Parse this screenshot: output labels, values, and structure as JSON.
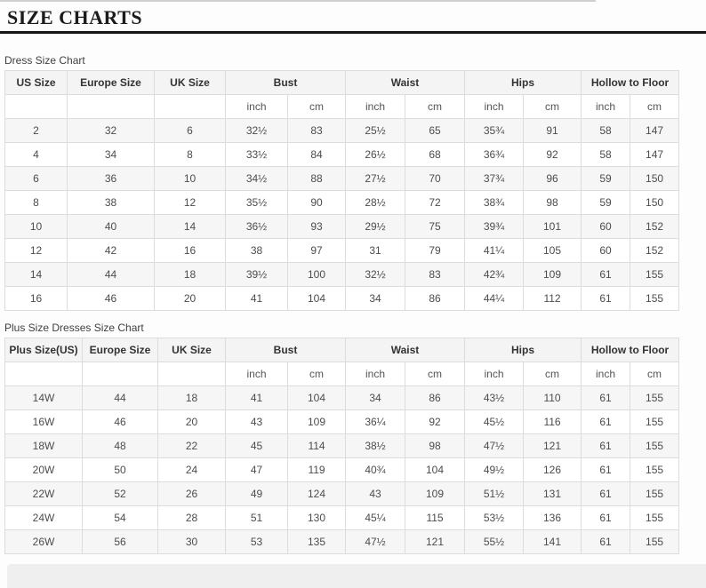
{
  "header": {
    "title": "SIZE CHARTS"
  },
  "tables": [
    {
      "label": "Dress Size Chart",
      "columns": [
        "US Size",
        "Europe Size",
        "UK Size",
        "Bust",
        "Waist",
        "Hips",
        "Hollow to Floor"
      ],
      "subunits": [
        "inch",
        "cm"
      ],
      "rows": [
        [
          "2",
          "32",
          "6",
          "32½",
          "83",
          "25½",
          "65",
          "35¾",
          "91",
          "58",
          "147"
        ],
        [
          "4",
          "34",
          "8",
          "33½",
          "84",
          "26½",
          "68",
          "36¾",
          "92",
          "58",
          "147"
        ],
        [
          "6",
          "36",
          "10",
          "34½",
          "88",
          "27½",
          "70",
          "37¾",
          "96",
          "59",
          "150"
        ],
        [
          "8",
          "38",
          "12",
          "35½",
          "90",
          "28½",
          "72",
          "38¾",
          "98",
          "59",
          "150"
        ],
        [
          "10",
          "40",
          "14",
          "36½",
          "93",
          "29½",
          "75",
          "39¾",
          "101",
          "60",
          "152"
        ],
        [
          "12",
          "42",
          "16",
          "38",
          "97",
          "31",
          "79",
          "41¼",
          "105",
          "60",
          "152"
        ],
        [
          "14",
          "44",
          "18",
          "39½",
          "100",
          "32½",
          "83",
          "42¾",
          "109",
          "61",
          "155"
        ],
        [
          "16",
          "46",
          "20",
          "41",
          "104",
          "34",
          "86",
          "44¼",
          "112",
          "61",
          "155"
        ]
      ]
    },
    {
      "label": "Plus Size Dresses Size Chart",
      "columns": [
        "Plus Size(US)",
        "Europe Size",
        "UK Size",
        "Bust",
        "Waist",
        "Hips",
        "Hollow to Floor"
      ],
      "subunits": [
        "inch",
        "cm"
      ],
      "rows": [
        [
          "14W",
          "44",
          "18",
          "41",
          "104",
          "34",
          "86",
          "43½",
          "110",
          "61",
          "155"
        ],
        [
          "16W",
          "46",
          "20",
          "43",
          "109",
          "36¼",
          "92",
          "45½",
          "116",
          "61",
          "155"
        ],
        [
          "18W",
          "48",
          "22",
          "45",
          "114",
          "38½",
          "98",
          "47½",
          "121",
          "61",
          "155"
        ],
        [
          "20W",
          "50",
          "24",
          "47",
          "119",
          "40¾",
          "104",
          "49½",
          "126",
          "61",
          "155"
        ],
        [
          "22W",
          "52",
          "26",
          "49",
          "124",
          "43",
          "109",
          "51½",
          "131",
          "61",
          "155"
        ],
        [
          "24W",
          "54",
          "28",
          "51",
          "130",
          "45¼",
          "115",
          "53½",
          "136",
          "61",
          "155"
        ],
        [
          "26W",
          "56",
          "30",
          "53",
          "135",
          "47½",
          "121",
          "55½",
          "141",
          "61",
          "155"
        ]
      ]
    }
  ],
  "colors": {
    "title_rule": "#161616",
    "table_border": "#dcdcdc",
    "header_bg": "#f4f4f4",
    "stripe_bg": "#f6f6f6",
    "footer_strip_bg": "#efefef"
  }
}
